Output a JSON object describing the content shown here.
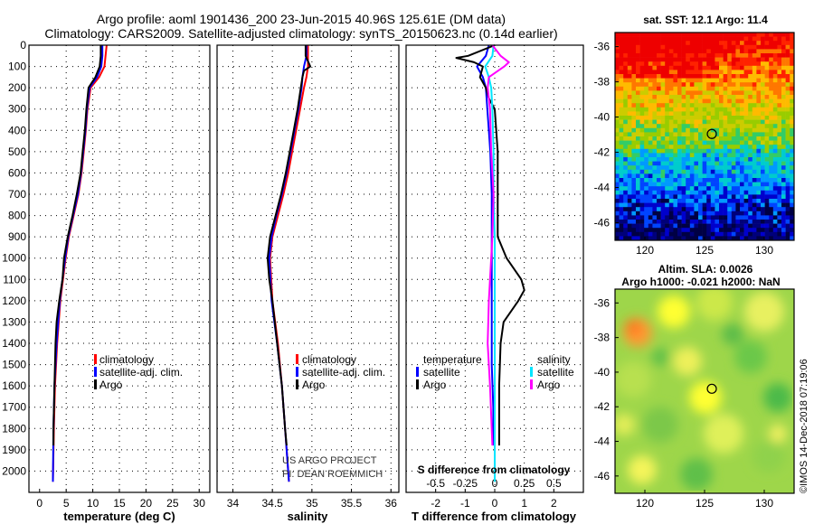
{
  "header": {
    "title_line1": "Argo profile: aoml 1901436_200 23-Jun-2015 40.96S 125.61E (DM data)",
    "title_line2": "Climatology: CARS2009. Satellite-adjusted climatology: synTS_20150623.nc (0.14d earlier)"
  },
  "credit": "©IMOS 14-Dec-2018 07:19:06",
  "colors": {
    "climatology": "#ff0000",
    "satellite": "#0000ff",
    "argo": "#000000",
    "argo_salinity": "#ff00ff",
    "satellite_salinity": "#00e5ff"
  },
  "chart_data": [
    {
      "type": "line",
      "name": "temperature-profile",
      "xlabel": "temperature (deg C)",
      "ylabel": "depth",
      "xlim": [
        -2,
        32
      ],
      "ylim": [
        2100,
        0
      ],
      "xticks": [
        "0",
        "5",
        "10",
        "15",
        "20",
        "25",
        "30"
      ],
      "yticks": [
        "0",
        "100",
        "200",
        "300",
        "400",
        "500",
        "600",
        "700",
        "800",
        "900",
        "1000",
        "1100",
        "1200",
        "1300",
        "1400",
        "1500",
        "1600",
        "1700",
        "1800",
        "1900",
        "2000"
      ],
      "legend": [
        "climatology",
        "satellite-adj. clim.",
        "Argo"
      ],
      "series": [
        {
          "name": "climatology",
          "color": "#ff0000",
          "depth": [
            0,
            50,
            100,
            150,
            200,
            300,
            400,
            500,
            600,
            700,
            800,
            900,
            1000,
            1200,
            1400,
            1600,
            1800,
            2050
          ],
          "values": [
            12.6,
            12.4,
            12.2,
            11.2,
            9.6,
            9.0,
            8.7,
            8.3,
            7.9,
            7.3,
            6.4,
            5.5,
            4.9,
            3.9,
            3.3,
            2.9,
            2.7,
            2.5
          ]
        },
        {
          "name": "satellite-adj. clim.",
          "color": "#0000ff",
          "depth": [
            0,
            50,
            100,
            150,
            200,
            300,
            400,
            500,
            600,
            700,
            800,
            900,
            1000,
            1200,
            1400,
            1600,
            1800,
            2050
          ],
          "values": [
            11.8,
            11.8,
            11.6,
            10.8,
            9.4,
            8.9,
            8.6,
            8.2,
            7.8,
            7.2,
            6.3,
            5.4,
            4.8,
            3.8,
            3.2,
            2.8,
            2.6,
            2.5
          ]
        },
        {
          "name": "Argo",
          "color": "#000000",
          "depth": [
            0,
            50,
            100,
            150,
            200,
            300,
            400,
            500,
            600,
            700,
            800,
            900,
            1000,
            1100,
            1200,
            1300,
            1400,
            1600,
            1800,
            1880
          ],
          "values": [
            11.5,
            11.5,
            11.3,
            10.5,
            9.2,
            8.8,
            8.5,
            8.1,
            7.7,
            7.0,
            6.2,
            5.3,
            4.6,
            4.3,
            3.7,
            3.2,
            3.0,
            2.8,
            2.6,
            2.6
          ]
        }
      ]
    },
    {
      "type": "line",
      "name": "salinity-profile",
      "xlabel": "salinity",
      "xlim": [
        33.8,
        36.1
      ],
      "ylim": [
        2100,
        0
      ],
      "xticks": [
        "34",
        "34.5",
        "35",
        "35.5",
        "36"
      ],
      "legend": [
        "climatology",
        "satellite-adj. clim.",
        "Argo"
      ],
      "annotation": [
        "US ARGO PROJECT",
        "PI: DEAN ROEMMICH"
      ],
      "series": [
        {
          "name": "climatology",
          "color": "#ff0000",
          "depth": [
            0,
            50,
            100,
            150,
            200,
            300,
            400,
            500,
            600,
            700,
            800,
            900,
            1000,
            1200,
            1400,
            1600,
            1800,
            2050
          ],
          "values": [
            34.95,
            34.95,
            34.95,
            34.93,
            34.9,
            34.85,
            34.8,
            34.75,
            34.7,
            34.64,
            34.57,
            34.5,
            34.47,
            34.5,
            34.57,
            34.62,
            34.66,
            34.71
          ]
        },
        {
          "name": "satellite-adj. clim.",
          "color": "#0000ff",
          "depth": [
            0,
            50,
            100,
            150,
            200,
            300,
            400,
            500,
            600,
            700,
            800,
            900,
            1000,
            1200,
            1400,
            1600,
            1800,
            2050
          ],
          "values": [
            34.93,
            34.93,
            34.9,
            34.88,
            34.87,
            34.83,
            34.78,
            34.73,
            34.68,
            34.62,
            34.55,
            34.49,
            34.46,
            34.49,
            34.56,
            34.62,
            34.66,
            34.71
          ]
        },
        {
          "name": "Argo",
          "color": "#000000",
          "depth": [
            0,
            50,
            100,
            120,
            150,
            200,
            300,
            400,
            500,
            600,
            700,
            800,
            900,
            1000,
            1100,
            1200,
            1400,
            1600,
            1800,
            1880
          ],
          "values": [
            34.92,
            34.92,
            34.98,
            34.9,
            34.88,
            34.86,
            34.82,
            34.77,
            34.72,
            34.67,
            34.61,
            34.54,
            34.47,
            34.44,
            34.46,
            34.5,
            34.56,
            34.62,
            34.66,
            34.68
          ]
        }
      ]
    },
    {
      "type": "line",
      "name": "difference-profile",
      "xlabel": "T difference from climatology",
      "xlabel2": "S difference from climatology",
      "xlim": [
        -3,
        3
      ],
      "ylim": [
        2100,
        0
      ],
      "xticks": [
        "-2",
        "-1",
        "0",
        "1",
        "2"
      ],
      "xticks2": [
        "-0.5",
        "-0.25",
        "0",
        "0.25",
        "0.5"
      ],
      "legend_temperature": [
        "temperature",
        "satellite",
        "Argo"
      ],
      "legend_salinity": [
        "salinity",
        "satellite",
        "Argo"
      ],
      "series": [
        {
          "name": "T satellite",
          "color": "#0000ff",
          "depth": [
            0,
            50,
            100,
            150,
            200,
            300,
            400,
            500,
            700,
            900,
            1100,
            1300,
            1500,
            1700,
            1880
          ],
          "values": [
            -0.2,
            -0.3,
            -0.6,
            -0.4,
            -0.3,
            -0.25,
            -0.2,
            -0.15,
            -0.1,
            -0.1,
            -0.1,
            -0.1,
            -0.1,
            -0.05,
            -0.05
          ]
        },
        {
          "name": "T Argo",
          "color": "#000000",
          "depth": [
            0,
            50,
            60,
            80,
            100,
            150,
            200,
            250,
            300,
            500,
            700,
            900,
            1000,
            1100,
            1150,
            1200,
            1300,
            1400,
            1600,
            1880
          ],
          "values": [
            0.0,
            -0.9,
            -1.3,
            -0.7,
            -0.4,
            -0.5,
            -0.3,
            -0.2,
            0.0,
            0.1,
            0.1,
            0.1,
            0.4,
            0.9,
            1.0,
            0.8,
            0.3,
            0.2,
            0.15,
            0.15
          ]
        },
        {
          "name": "S satellite",
          "color": "#00e5ff",
          "depth": [
            0,
            50,
            100,
            150,
            200,
            300,
            500,
            700,
            900,
            1100,
            1300,
            1500,
            1700,
            2050
          ],
          "values": [
            -0.01,
            -0.02,
            -0.08,
            -0.05,
            -0.03,
            -0.02,
            -0.01,
            -0.01,
            0.0,
            0.0,
            0.0,
            0.0,
            0.0,
            0.0
          ]
        },
        {
          "name": "S Argo",
          "color": "#ff00ff",
          "depth": [
            0,
            50,
            80,
            100,
            150,
            200,
            300,
            500,
            700,
            900,
            1000,
            1100,
            1200,
            1400,
            1600,
            1880
          ],
          "values": [
            -0.02,
            0.05,
            0.12,
            0.08,
            -0.05,
            -0.06,
            -0.04,
            -0.03,
            -0.01,
            -0.02,
            -0.03,
            -0.04,
            -0.05,
            -0.06,
            -0.04,
            -0.02
          ]
        }
      ]
    },
    {
      "type": "heatmap",
      "name": "sst-map",
      "title": "sat. SST: 12.1 Argo: 11.4",
      "xticks": [
        "120",
        "125",
        "130"
      ],
      "yticks": [
        "-36",
        "-38",
        "-40",
        "-42",
        "-44",
        "-46"
      ],
      "xlim": [
        117.5,
        132.5
      ],
      "ylim": [
        -47,
        -35.2
      ],
      "marker": [
        125.61,
        -40.96
      ]
    },
    {
      "type": "heatmap",
      "name": "sla-map",
      "title_line1": "Altim. SLA: 0.0026",
      "title_line2": "Argo h1000: -0.021 h2000: NaN",
      "xticks": [
        "120",
        "125",
        "130"
      ],
      "yticks": [
        "-36",
        "-38",
        "-40",
        "-42",
        "-44",
        "-46"
      ],
      "xlim": [
        117.5,
        132.5
      ],
      "ylim": [
        -47,
        -35.2
      ],
      "marker": [
        125.61,
        -40.96
      ]
    }
  ]
}
